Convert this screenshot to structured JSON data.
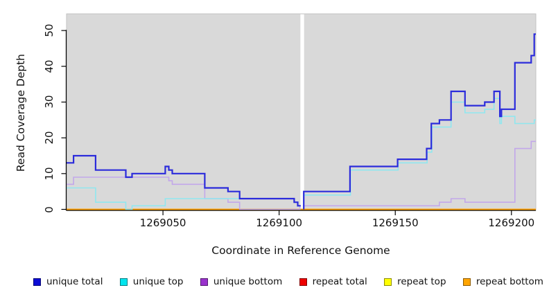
{
  "chart_data": {
    "type": "line",
    "subtype": "step",
    "title": "",
    "xlabel": "Coordinate in Reference Genome",
    "ylabel": "Read Coverage Depth",
    "xlim": [
      1269008.5,
      1269210.5
    ],
    "ylim": [
      0,
      50
    ],
    "x_ticks": [
      1269050,
      1269100,
      1269150,
      1269200
    ],
    "x_tick_labels": [
      "1269050",
      "1269100",
      "1269150",
      "1269200"
    ],
    "y_ticks": [
      0,
      10,
      20,
      30,
      40,
      50
    ],
    "y_tick_labels": [
      "0",
      "10",
      "20",
      "30",
      "40",
      "50"
    ],
    "plot_background": "#d9d9d9",
    "plot_border": "#c2c2c2",
    "grid": "off",
    "legend_position": "bottom",
    "gap_region": {
      "from": 1269109.3,
      "to": 1269110.6,
      "color": "#ffffff"
    },
    "series": [
      {
        "name": "repeat total",
        "color": "#dd0000",
        "line_width": 1.2,
        "segments": [
          [
            [
              1269008.5,
              0
            ],
            [
              1269210.5,
              0
            ]
          ]
        ]
      },
      {
        "name": "repeat top",
        "color": "#ffff00",
        "line_width": 1.2,
        "segments": [
          [
            [
              1269008.5,
              0
            ],
            [
              1269210.5,
              0
            ]
          ]
        ]
      },
      {
        "name": "repeat bottom",
        "color": "#ffa000",
        "line_width": 2,
        "segments": [
          [
            [
              1269008.5,
              0
            ],
            [
              1269210.5,
              0
            ]
          ]
        ]
      },
      {
        "name": "unique bottom",
        "color": "#c2a7ea",
        "line_width": 1.6,
        "segments": [
          [
            [
              1269008.5,
              7
            ],
            [
              1269011.5,
              9
            ],
            [
              1269052.5,
              8
            ],
            [
              1269054,
              7
            ],
            [
              1269068,
              3
            ],
            [
              1269078,
              2
            ],
            [
              1269083,
              0
            ],
            [
              1269109,
              1
            ],
            [
              1269109.3,
              1
            ]
          ],
          [
            [
              1269110.6,
              1
            ],
            [
              1269169,
              2
            ],
            [
              1269174,
              3
            ],
            [
              1269180,
              2
            ],
            [
              1269201.5,
              17
            ],
            [
              1269208.5,
              19
            ],
            [
              1269210.5,
              19
            ]
          ]
        ]
      },
      {
        "name": "unique top",
        "color": "#8fe7ef",
        "line_width": 1.6,
        "segments": [
          [
            [
              1269008.5,
              6
            ],
            [
              1269021,
              2
            ],
            [
              1269034,
              0
            ],
            [
              1269036.7,
              1
            ],
            [
              1269051,
              3
            ],
            [
              1269106.5,
              2
            ],
            [
              1269108,
              1
            ],
            [
              1269109.3,
              1
            ]
          ],
          [
            [
              1269110.6,
              0
            ],
            [
              1269110.6,
              4
            ],
            [
              1269130.7,
              11
            ],
            [
              1269151.2,
              13
            ],
            [
              1269163.7,
              16
            ],
            [
              1269165.7,
              23
            ],
            [
              1269174,
              30
            ],
            [
              1269180,
              27
            ],
            [
              1269188.5,
              28
            ],
            [
              1269192.5,
              31
            ],
            [
              1269195,
              24
            ],
            [
              1269195.7,
              26
            ],
            [
              1269201.5,
              24
            ],
            [
              1269209.8,
              25
            ],
            [
              1269210.5,
              25
            ]
          ]
        ]
      },
      {
        "name": "unique total",
        "color": "#2b2bdb",
        "line_width": 2.2,
        "segments": [
          [
            [
              1269008.5,
              13
            ],
            [
              1269011.5,
              15
            ],
            [
              1269021,
              11
            ],
            [
              1269034,
              9
            ],
            [
              1269036.7,
              10
            ],
            [
              1269051,
              12
            ],
            [
              1269052.5,
              11
            ],
            [
              1269054,
              10
            ],
            [
              1269068,
              6
            ],
            [
              1269078,
              5
            ],
            [
              1269083,
              3
            ],
            [
              1269106.5,
              2
            ],
            [
              1269108,
              1
            ],
            [
              1269109.3,
              1
            ]
          ],
          [
            [
              1269110.6,
              0
            ],
            [
              1269110.6,
              5
            ],
            [
              1269130.5,
              12
            ],
            [
              1269151,
              14
            ],
            [
              1269163.5,
              17
            ],
            [
              1269165.5,
              24
            ],
            [
              1269169,
              25
            ],
            [
              1269174,
              33
            ],
            [
              1269180,
              29
            ],
            [
              1269188.5,
              30
            ],
            [
              1269192.5,
              33
            ],
            [
              1269195,
              26
            ],
            [
              1269195.7,
              28
            ],
            [
              1269201.5,
              41
            ],
            [
              1269208.5,
              43
            ],
            [
              1269209.8,
              49
            ],
            [
              1269210.5,
              49
            ]
          ]
        ]
      }
    ]
  },
  "legend": {
    "items": [
      {
        "label": "unique total",
        "color": "#0d0dd6"
      },
      {
        "label": "unique top",
        "color": "#00e5ee"
      },
      {
        "label": "unique bottom",
        "color": "#9932cc"
      },
      {
        "label": "repeat total",
        "color": "#ee0000"
      },
      {
        "label": "repeat top",
        "color": "#ffff00"
      },
      {
        "label": "repeat bottom",
        "color": "#ffa500"
      }
    ]
  }
}
